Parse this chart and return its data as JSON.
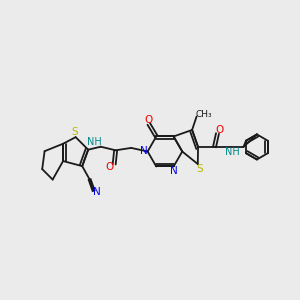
{
  "bg_color": "#ebebeb",
  "fig_size": [
    3.0,
    3.0
  ],
  "dpi": 100,
  "bond_color": "#1a1a1a",
  "S_color": "#b8b800",
  "N_color": "#0000ee",
  "O_color": "#ee0000",
  "NH_color": "#008888",
  "line_width": 1.3,
  "xlim": [
    0,
    10
  ],
  "ylim": [
    2.5,
    8.5
  ]
}
